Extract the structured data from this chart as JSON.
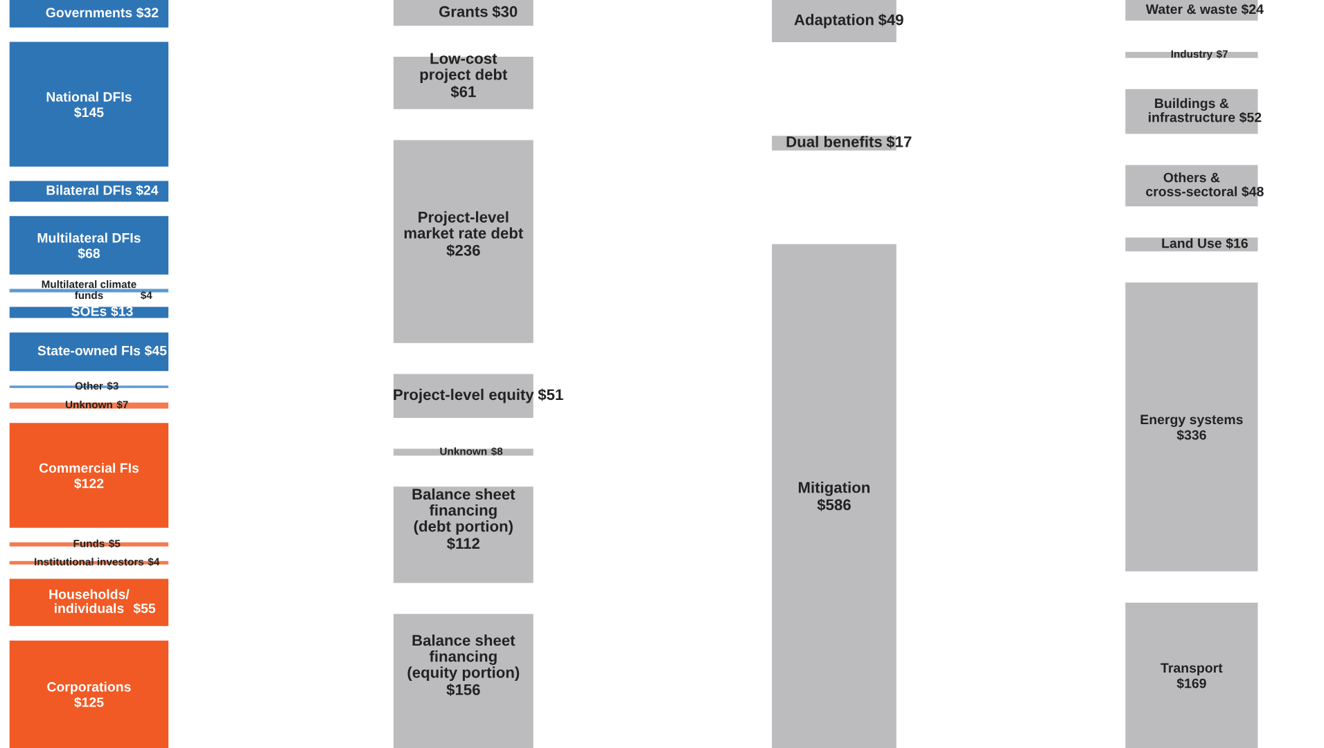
{
  "chart_data": [
    {
      "type": "other",
      "categories": [
        "Governments",
        "National DFIs",
        "Bilateral DFIs",
        "Multilateral DFIs",
        "Multilateral climate\nfunds",
        "SOEs",
        "State-owned FIs",
        "Other",
        "Unknown",
        "Commercial FIs",
        "Funds",
        "Institutional investors",
        "Households/\nindividuals",
        "Corporations"
      ],
      "values": [
        32,
        145,
        24,
        68,
        4,
        13,
        45,
        3,
        7,
        122,
        5,
        4,
        55,
        125
      ],
      "value_labels": [
        "$32",
        "$145",
        "$24",
        "$68",
        "$4",
        "$13",
        "$45",
        "$3",
        "$7",
        "$122",
        "$5",
        "$4",
        "$55",
        "$125"
      ],
      "colors": [
        "#2e75b6",
        "#2e75b6",
        "#2e75b6",
        "#2e75b6",
        "#5b9bd5",
        "#2e75b6",
        "#2e75b6",
        "#5b9bd5",
        "#f47a50",
        "#f15a24",
        "#f47a50",
        "#f47a50",
        "#f15a24",
        "#f15a24"
      ]
    },
    {
      "type": "other",
      "categories": [
        "Grants",
        "Low-cost\nproject debt",
        "Project-level\nmarket rate debt",
        "Project-level equity",
        "Unknown",
        "Balance sheet\nfinancing\n(debt portion)",
        "Balance sheet\nfinancing\n(equity portion)"
      ],
      "values": [
        30,
        61,
        236,
        51,
        8,
        112,
        156
      ],
      "value_labels": [
        "$30",
        "$61",
        "$236",
        "$51",
        "$8",
        "$112",
        "$156"
      ],
      "colors": [
        "#bcbcbe",
        "#bcbcbe",
        "#bcbcbe",
        "#bcbcbe",
        "#bcbcbe",
        "#bcbcbe",
        "#bcbcbe"
      ]
    },
    {
      "type": "other",
      "categories": [
        "Adaptation",
        "Dual benefits",
        "Mitigation"
      ],
      "values": [
        49,
        17,
        586
      ],
      "value_labels": [
        "$49",
        "$17",
        "$586"
      ],
      "colors": [
        "#bcbcbe",
        "#bcbcbe",
        "#bcbcbe"
      ]
    },
    {
      "type": "other",
      "categories": [
        "Water & waste",
        "Industry",
        "Buildings &\ninfrastructure",
        "Others &\ncross-sectoral",
        "Land Use",
        "Energy systems",
        "Transport"
      ],
      "values": [
        24,
        7,
        52,
        48,
        16,
        336,
        169
      ],
      "value_labels": [
        "$24",
        "$7",
        "$52",
        "$48",
        "$16",
        "$336",
        "$169"
      ],
      "colors": [
        "#bcbcbe",
        "#bcbcbe",
        "#bcbcbe",
        "#bcbcbe",
        "#bcbcbe",
        "#bcbcbe",
        "#bcbcbe"
      ]
    }
  ]
}
